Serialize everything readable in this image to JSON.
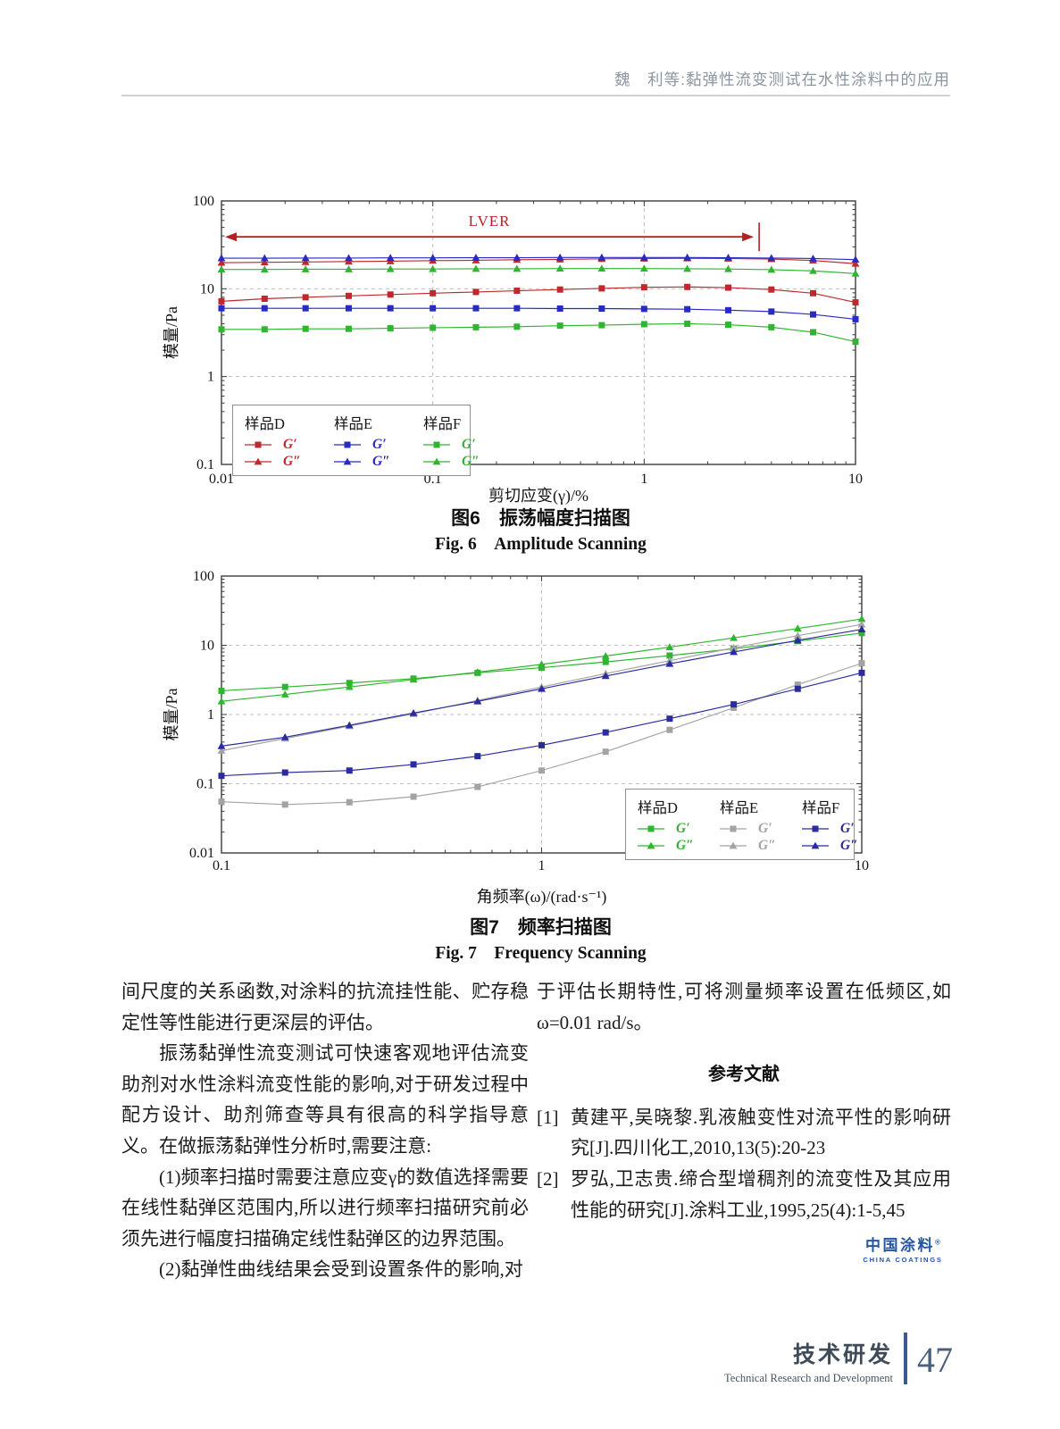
{
  "header": {
    "title": "魏　利等:黏弹性流变测试在水性涂料中的应用"
  },
  "body": {
    "left": [
      "间尺度的关系函数,对涂料的抗流挂性能、贮存稳定性等性能进行更深层的评估。",
      "振荡黏弹性流变测试可快速客观地评估流变助剂对水性涂料流变性能的影响,对于研发过程中配方设计、助剂筛查等具有很高的科学指导意义。在做振荡黏弹性分析时,需要注意:",
      "(1)频率扫描时需要注意应变γ的数值选择需要在线性黏弹区范围内,所以进行频率扫描研究前必须先进行幅度扫描确定线性黏弹区的边界范围。",
      "(2)黏弹性曲线结果会受到设置条件的影响,对"
    ],
    "right": [
      "于评估长期特性,可将测量频率设置在低频区,如ω=0.01 rad/s。"
    ],
    "references_title": "参考文献",
    "references": [
      {
        "num": "[1]",
        "text": "黄建平,吴晓黎.乳液触变性对流平性的影响研究[J].四川化工,2010,13(5):20-23"
      },
      {
        "num": "[2]",
        "text": "罗弘,卫志贵.缔合型增稠剂的流变性及其应用性能的研究[J].涂料工业,1995,25(4):1-5,45"
      }
    ]
  },
  "logo": {
    "cn": "中国涂料",
    "mark": "®",
    "en": "CHINA COATINGS",
    "color": "#2456a4"
  },
  "footer": {
    "section_cn": "技术研发",
    "section_en": "Technical Research and Development",
    "page_number": "47"
  },
  "chart_data": [
    {
      "type": "line",
      "title_cn": "图6　振荡幅度扫描图",
      "title_en": "Fig. 6　Amplitude Scanning",
      "xlabel": "剪切应变(γ)/%",
      "ylabel": "模量/Pa",
      "xscale": "log",
      "yscale": "log",
      "xlim": [
        0.01,
        10
      ],
      "ylim": [
        0.1,
        100
      ],
      "grid": "dashed-decades",
      "legend_position": "bottom-left",
      "x": [
        0.01,
        0.016,
        0.025,
        0.04,
        0.063,
        0.1,
        0.16,
        0.25,
        0.4,
        0.63,
        1.0,
        1.6,
        2.5,
        4.0,
        6.3,
        10
      ],
      "series": [
        {
          "sample": "样品D",
          "name": "G′",
          "marker": "square",
          "color": "#c1272d",
          "values": [
            7.2,
            7.7,
            8.0,
            8.3,
            8.6,
            8.9,
            9.2,
            9.5,
            9.8,
            10.1,
            10.4,
            10.5,
            10.3,
            9.8,
            8.9,
            7.0
          ]
        },
        {
          "sample": "样品D",
          "name": "G″",
          "marker": "triangle",
          "color": "#c1272d",
          "values": [
            19.8,
            20.0,
            20.2,
            20.4,
            20.6,
            20.9,
            21.1,
            21.4,
            21.6,
            21.9,
            22.1,
            22.2,
            22.1,
            21.8,
            21.0,
            19.3
          ]
        },
        {
          "sample": "样品E",
          "name": "G′",
          "marker": "square",
          "color": "#2929c4",
          "values": [
            6.0,
            6.0,
            6.0,
            6.0,
            6.0,
            6.0,
            6.0,
            6.0,
            5.95,
            5.95,
            5.9,
            5.85,
            5.7,
            5.5,
            5.1,
            4.5
          ]
        },
        {
          "sample": "样品E",
          "name": "G″",
          "marker": "triangle",
          "color": "#2929c4",
          "values": [
            22.3,
            22.3,
            22.4,
            22.4,
            22.5,
            22.5,
            22.6,
            22.6,
            22.7,
            22.7,
            22.7,
            22.7,
            22.6,
            22.4,
            22.1,
            21.5
          ]
        },
        {
          "sample": "样品F",
          "name": "G′",
          "marker": "square",
          "color": "#2fb52f",
          "values": [
            3.45,
            3.45,
            3.5,
            3.5,
            3.55,
            3.6,
            3.65,
            3.7,
            3.8,
            3.85,
            3.95,
            4.0,
            3.9,
            3.65,
            3.2,
            2.5
          ]
        },
        {
          "sample": "样品F",
          "name": "G″",
          "marker": "triangle",
          "color": "#2fb52f",
          "values": [
            16.6,
            16.6,
            16.7,
            16.7,
            16.8,
            16.8,
            16.9,
            16.9,
            17.0,
            17.0,
            17.0,
            16.9,
            16.8,
            16.5,
            16.0,
            14.9
          ]
        }
      ],
      "annotation": {
        "label": "LVER",
        "y": 39,
        "x_start": 0.0104,
        "x_end": 3.3,
        "tick_x": 3.5,
        "color": "#b22222"
      }
    },
    {
      "type": "line",
      "title_cn": "图7　频率扫描图",
      "title_en": "Fig. 7　Frequency Scanning",
      "xlabel": "角频率(ω)/(rad·s⁻¹)",
      "ylabel": "模量/Pa",
      "xscale": "log",
      "yscale": "log",
      "xlim": [
        0.1,
        10
      ],
      "ylim": [
        0.01,
        100
      ],
      "grid": "dashed-decades",
      "legend_position": "bottom-right",
      "x": [
        0.1,
        0.158,
        0.251,
        0.398,
        0.631,
        1.0,
        1.585,
        2.512,
        3.981,
        6.31,
        10
      ],
      "series": [
        {
          "sample": "样品D",
          "name": "G′",
          "marker": "square",
          "color": "#2fb52f",
          "values": [
            2.2,
            2.5,
            2.85,
            3.3,
            4.0,
            4.75,
            5.75,
            7.1,
            8.9,
            11.5,
            15
          ]
        },
        {
          "sample": "样品D",
          "name": "G″",
          "marker": "triangle",
          "color": "#2fb52f",
          "values": [
            1.55,
            1.95,
            2.5,
            3.2,
            4.1,
            5.3,
            7.0,
            9.4,
            12.8,
            17.5,
            24
          ]
        },
        {
          "sample": "样品E",
          "name": "G′",
          "marker": "square",
          "color": "#a3a3a3",
          "values": [
            0.055,
            0.05,
            0.054,
            0.065,
            0.09,
            0.155,
            0.29,
            0.6,
            1.25,
            2.7,
            5.5
          ]
        },
        {
          "sample": "样品E",
          "name": "G″",
          "marker": "triangle",
          "color": "#a3a3a3",
          "values": [
            0.3,
            0.45,
            0.68,
            1.02,
            1.6,
            2.5,
            3.9,
            6.0,
            9.2,
            13.8,
            20
          ]
        },
        {
          "sample": "样品F",
          "name": "G′",
          "marker": "square",
          "color": "#2b2ba0",
          "values": [
            0.13,
            0.145,
            0.155,
            0.19,
            0.25,
            0.36,
            0.55,
            0.87,
            1.4,
            2.35,
            4.0
          ]
        },
        {
          "sample": "样品F",
          "name": "G″",
          "marker": "triangle",
          "color": "#2b2ba0",
          "values": [
            0.35,
            0.47,
            0.7,
            1.05,
            1.55,
            2.35,
            3.6,
            5.4,
            8.0,
            11.8,
            17
          ]
        }
      ]
    }
  ]
}
